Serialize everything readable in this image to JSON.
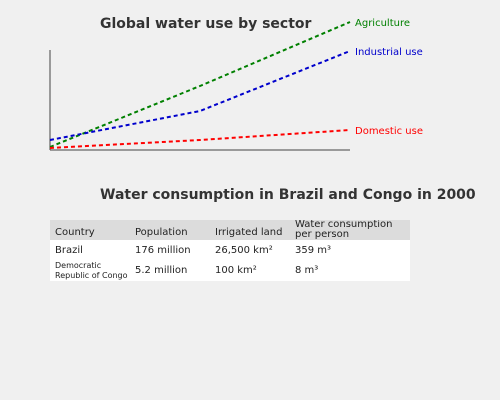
{
  "chart_data": [
    {
      "type": "line",
      "title": "Global water use by sector",
      "xlabel": "",
      "ylabel": "",
      "grid": false,
      "legend": "series labels at right end of lines",
      "x": [
        0,
        50,
        100
      ],
      "ylim": [
        0,
        130
      ],
      "series": [
        {
          "name": "Agriculture",
          "color": "#008000",
          "dash": true,
          "values": [
            3,
            64,
            128
          ]
        },
        {
          "name": "Industrial use",
          "color": "#0000cc",
          "dash": true,
          "values": [
            10,
            39,
            99
          ]
        },
        {
          "name": "Domestic use",
          "color": "#ff0000",
          "dash": true,
          "values": [
            2,
            10,
            20
          ]
        }
      ]
    },
    {
      "type": "table",
      "title": "Water consumption in Brazil and Congo in 2000",
      "columns": [
        "Country",
        "Population",
        "Irrigated land",
        "Water consumption per person"
      ],
      "rows": [
        [
          "Brazil",
          "176 million",
          "26,500 km²",
          "359 m³"
        ],
        [
          "Democratic Republic of Congo",
          "5.2 million",
          "100 km²",
          "8 m³"
        ]
      ]
    }
  ]
}
